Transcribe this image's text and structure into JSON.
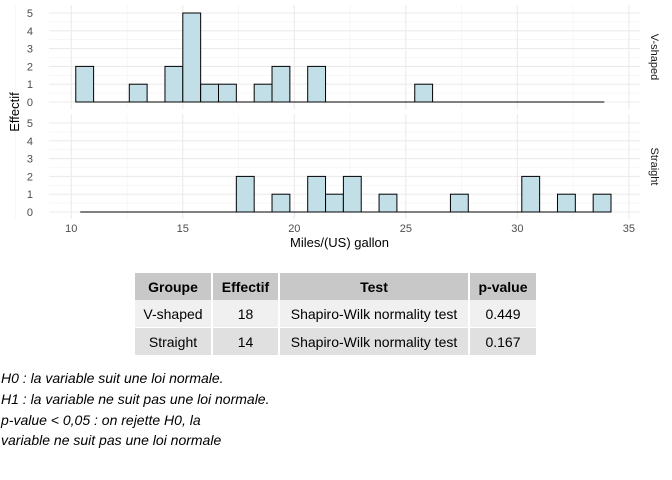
{
  "chart_data": {
    "type": "bar",
    "subtype": "faceted-histogram",
    "xlabel": "Miles/(US) gallon",
    "ylabel": "Effectif",
    "xlim": [
      9,
      35.5
    ],
    "ylim": [
      0,
      5.3
    ],
    "x_ticks": [
      10,
      15,
      20,
      25,
      30,
      35
    ],
    "y_ticks": [
      0,
      1,
      2,
      3,
      4,
      5
    ],
    "bin_width": 0.8,
    "x_range_line": [
      10.4,
      33.9
    ],
    "grid": true,
    "facets": [
      {
        "label": "V-shaped",
        "bins": [
          {
            "x0": 10.2,
            "count": 2
          },
          {
            "x0": 12.6,
            "count": 1
          },
          {
            "x0": 14.2,
            "count": 2
          },
          {
            "x0": 15.0,
            "count": 5
          },
          {
            "x0": 15.8,
            "count": 1
          },
          {
            "x0": 16.6,
            "count": 1
          },
          {
            "x0": 18.2,
            "count": 1
          },
          {
            "x0": 19.0,
            "count": 2
          },
          {
            "x0": 20.6,
            "count": 2
          },
          {
            "x0": 25.4,
            "count": 1
          }
        ]
      },
      {
        "label": "Straight",
        "bins": [
          {
            "x0": 17.4,
            "count": 2
          },
          {
            "x0": 19.0,
            "count": 1
          },
          {
            "x0": 20.6,
            "count": 2
          },
          {
            "x0": 21.4,
            "count": 1
          },
          {
            "x0": 22.2,
            "count": 2
          },
          {
            "x0": 23.8,
            "count": 1
          },
          {
            "x0": 27.0,
            "count": 1
          },
          {
            "x0": 30.2,
            "count": 2
          },
          {
            "x0": 31.8,
            "count": 1
          },
          {
            "x0": 33.4,
            "count": 1
          }
        ]
      }
    ]
  },
  "table": {
    "headers": [
      "Groupe",
      "Effectif",
      "Test",
      "p-value"
    ],
    "rows": [
      [
        "V-shaped",
        "18",
        "Shapiro-Wilk normality test",
        "0.449"
      ],
      [
        "Straight",
        "14",
        "Shapiro-Wilk normality test",
        "0.167"
      ]
    ]
  },
  "notes": [
    "H0 : la variable suit une loi normale.",
    "H1 : la variable ne suit pas une loi normale.",
    "p-value < 0,05 : on rejette H0, la",
    "variable ne suit pas une loi normale"
  ]
}
